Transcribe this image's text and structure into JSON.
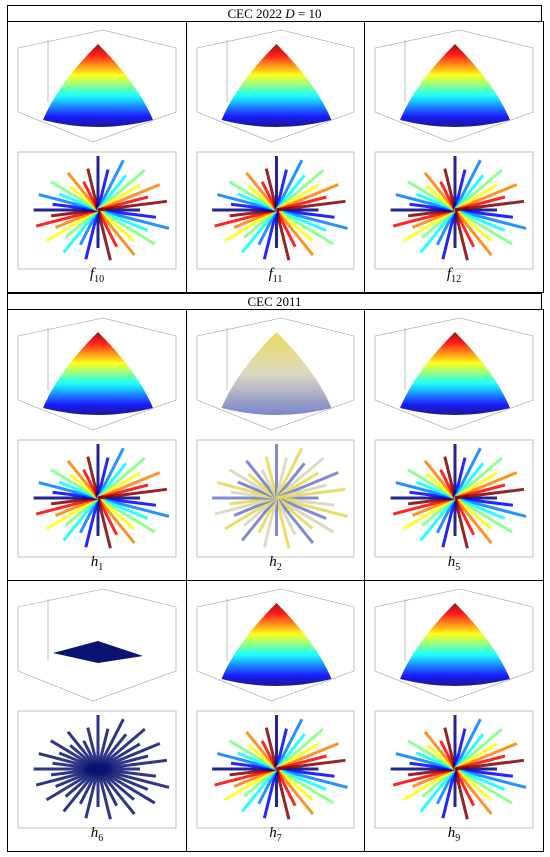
{
  "sections": [
    {
      "title": [
        "CEC 2022 ",
        "D",
        " = 10"
      ],
      "rows": [
        [
          {
            "symbol": "f",
            "index": "10"
          },
          {
            "symbol": "f",
            "index": "11"
          },
          {
            "symbol": "f",
            "index": "12"
          }
        ]
      ]
    },
    {
      "title": [
        "CEC 2011"
      ],
      "rows": [
        [
          {
            "symbol": "h",
            "index": "1"
          },
          {
            "symbol": "h",
            "index": "2"
          },
          {
            "symbol": "h",
            "index": "5"
          }
        ],
        [
          {
            "symbol": "h",
            "index": "6"
          },
          {
            "symbol": "h",
            "index": "7"
          },
          {
            "symbol": "h",
            "index": "9"
          }
        ]
      ]
    }
  ]
}
